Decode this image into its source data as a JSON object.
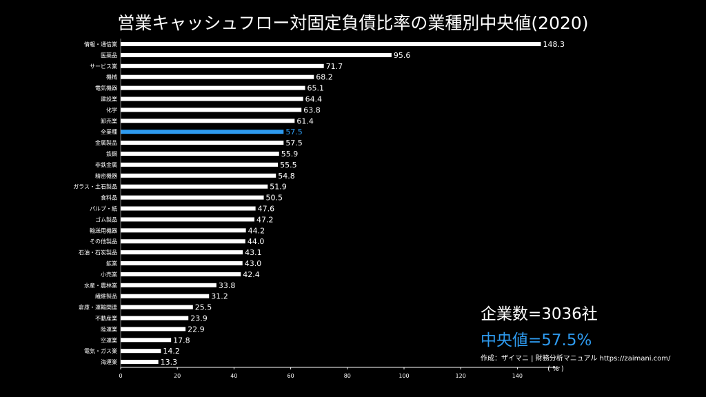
{
  "chart_data": {
    "type": "bar",
    "orientation": "horizontal",
    "title": "営業キャッシュフロー対固定負債比率の業種別中央値(2020)",
    "xlabel": "( % )",
    "ylabel": "",
    "xlim": [
      0,
      155
    ],
    "xticks": [
      0,
      20,
      40,
      60,
      80,
      100,
      120,
      140
    ],
    "grid": false,
    "highlight_category": "全業種",
    "categories": [
      "情報・通信業",
      "医薬品",
      "サービス業",
      "機械",
      "電気機器",
      "建設業",
      "化学",
      "卸売業",
      "全業種",
      "金属製品",
      "鉄鋼",
      "非鉄金属",
      "精密機器",
      "ガラス・土石製品",
      "食料品",
      "パルプ・紙",
      "ゴム製品",
      "輸送用機器",
      "その他製品",
      "石油・石炭製品",
      "鉱業",
      "小売業",
      "水産・農林業",
      "繊維製品",
      "倉庫・運輸関連",
      "不動産業",
      "陸運業",
      "空運業",
      "電気・ガス業",
      "海運業"
    ],
    "values": [
      148.3,
      95.6,
      71.7,
      68.2,
      65.1,
      64.4,
      63.8,
      61.4,
      57.5,
      57.5,
      55.9,
      55.5,
      54.8,
      51.9,
      50.5,
      47.6,
      47.2,
      44.2,
      44.0,
      43.1,
      43.0,
      42.4,
      33.8,
      31.2,
      25.5,
      23.9,
      22.9,
      17.8,
      14.2,
      13.3
    ],
    "value_labels": [
      "148.3",
      "95.6",
      "71.7",
      "68.2",
      "65.1",
      "64.4",
      "63.8",
      "61.4",
      "57.5",
      "57.5",
      "55.9",
      "55.5",
      "54.8",
      "51.9",
      "50.5",
      "47.6",
      "47.2",
      "44.2",
      "44.0",
      "43.1",
      "43.0",
      "42.4",
      "33.8",
      "31.2",
      "25.5",
      "23.9",
      "22.9",
      "17.8",
      "14.2",
      "13.3"
    ]
  },
  "colors": {
    "background": "#000000",
    "bar": "#ffffff",
    "highlight": "#2e9bf0",
    "text": "#ffffff"
  },
  "annotations": {
    "company_count": "企業数=3036社",
    "median": "中央値=57.5%",
    "credit": "作成：ザイマニ | 財務分析マニュアル https://zaimani.com/"
  }
}
